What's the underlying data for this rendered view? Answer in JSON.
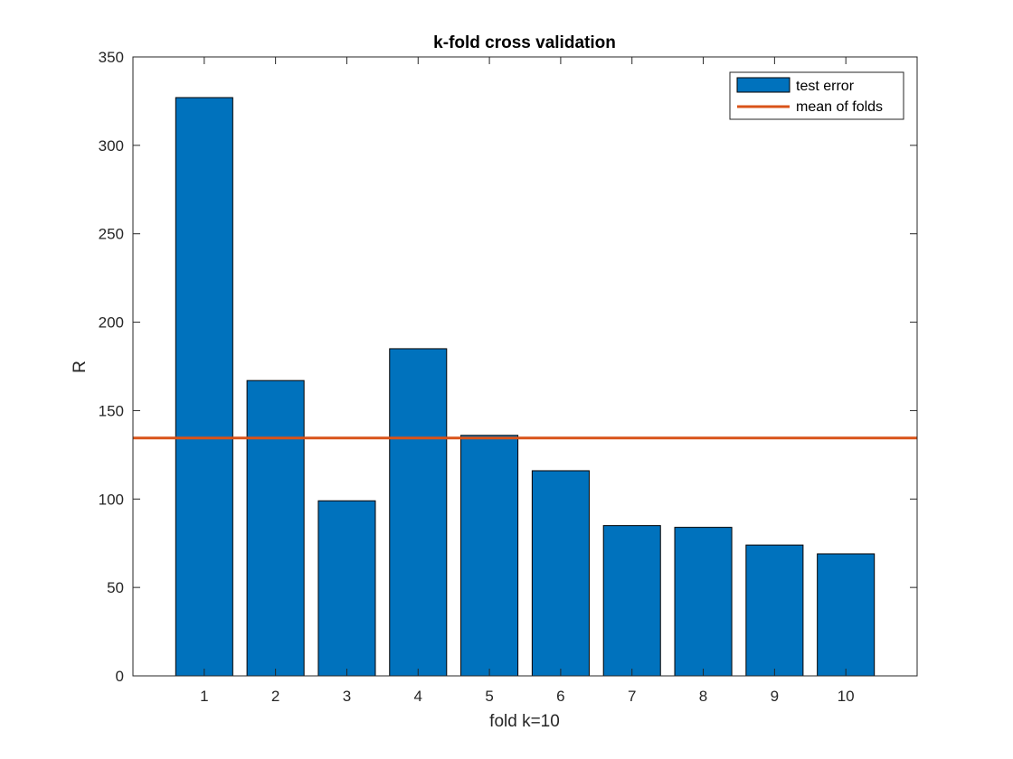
{
  "chart_data": {
    "type": "bar",
    "title": "k-fold cross validation",
    "xlabel": "fold k=10",
    "ylabel": "R",
    "categories": [
      "1",
      "2",
      "3",
      "4",
      "5",
      "6",
      "7",
      "8",
      "9",
      "10"
    ],
    "series": [
      {
        "name": "test error",
        "values": [
          327,
          167,
          99,
          185,
          136,
          116,
          85,
          84,
          74,
          69
        ],
        "color": "#0072BD"
      }
    ],
    "reference_lines": [
      {
        "name": "mean of folds",
        "y": 134.5,
        "color": "#D95319"
      }
    ],
    "yticks": [
      "0",
      "50",
      "100",
      "150",
      "200",
      "250",
      "300",
      "350"
    ],
    "ylim": [
      0,
      350
    ],
    "grid": false,
    "legend_position": "top-right",
    "legend": [
      "test error",
      "mean of folds"
    ]
  }
}
